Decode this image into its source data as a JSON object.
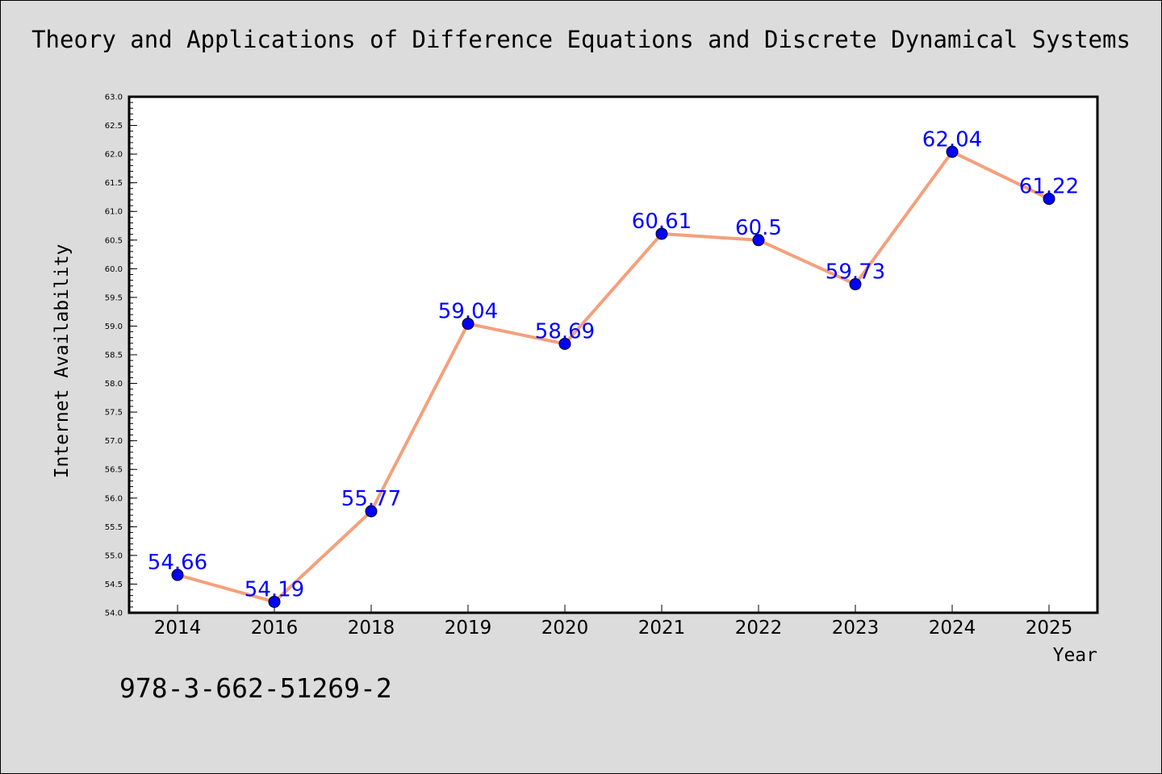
{
  "title": "Theory and Applications of Difference Equations and Discrete Dynamical Systems",
  "isbn": "978-3-662-51269-2",
  "chart_data": {
    "type": "line",
    "title": "Theory and Applications of Difference Equations and Discrete Dynamical Systems",
    "xlabel": "Year",
    "ylabel": "Internet Availability",
    "categories": [
      "2014",
      "2016",
      "2018",
      "2019",
      "2020",
      "2021",
      "2022",
      "2023",
      "2024",
      "2025"
    ],
    "series": [
      {
        "values": [
          54.66,
          54.19,
          55.77,
          59.04,
          58.69,
          60.61,
          60.5,
          59.73,
          62.04,
          61.22
        ]
      }
    ],
    "data_labels": [
      "54.66",
      "54.19",
      "55.77",
      "59.04",
      "58.69",
      "60.61",
      "60.5",
      "59.73",
      "62.04",
      "61.22"
    ],
    "ylim": [
      54.0,
      63.0
    ],
    "ytick_labels": [
      "54.0",
      "54.5",
      "55.0",
      "55.5",
      "56.0",
      "56.5",
      "57.0",
      "57.5",
      "58.0",
      "58.5",
      "59.0",
      "59.5",
      "60.0",
      "60.5",
      "61.0",
      "61.5",
      "62.0",
      "62.5",
      "63.0"
    ],
    "grid": false,
    "legend": "none",
    "colors": {
      "background": "#dcdcdc",
      "plot_background": "#ffffff",
      "line": "#f4a07c",
      "marker": "#0000ff",
      "data_label": "#0000ff"
    }
  }
}
